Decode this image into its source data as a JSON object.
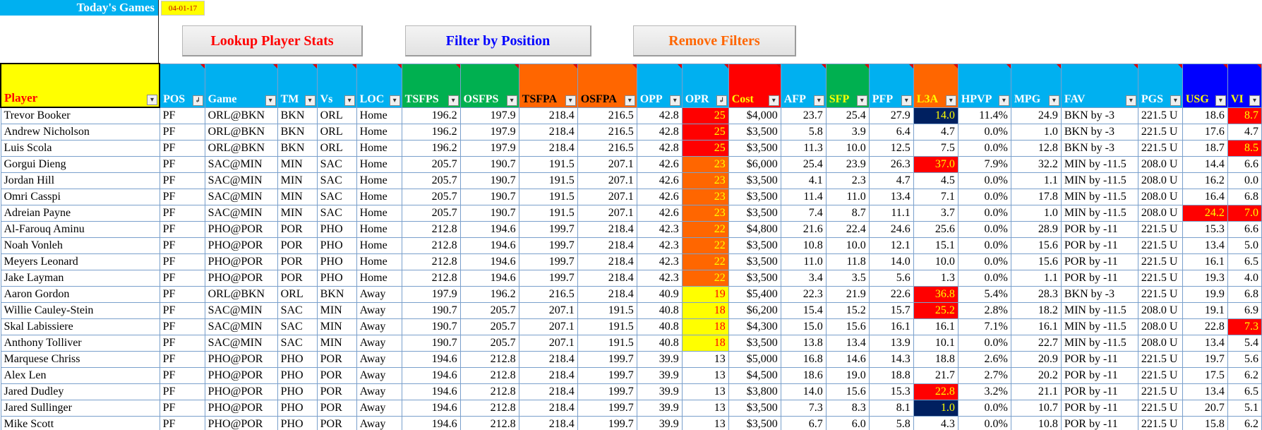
{
  "header": {
    "title": "Today's Games",
    "date": "04-01-17"
  },
  "buttons": {
    "lookup": "Lookup Player Stats",
    "filter": "Filter by Position",
    "remove": "Remove Filters"
  },
  "columns": [
    {
      "key": "player",
      "label": "Player",
      "bg": "#FFFF00",
      "w": 225
    },
    {
      "key": "pos",
      "label": "POS",
      "bg": "#00B0F0",
      "w": 64,
      "sorted": true
    },
    {
      "key": "game",
      "label": "Game",
      "bg": "#00B0F0",
      "w": 103
    },
    {
      "key": "tm",
      "label": "TM",
      "bg": "#00B0F0",
      "w": 56
    },
    {
      "key": "vs",
      "label": "Vs",
      "bg": "#00B0F0",
      "w": 56
    },
    {
      "key": "loc",
      "label": "LOC",
      "bg": "#00B0F0",
      "w": 64
    },
    {
      "key": "tsfps",
      "label": "TSFPS",
      "bg": "#00B050",
      "w": 83
    },
    {
      "key": "osfps",
      "label": "OSFPS",
      "bg": "#00B050",
      "w": 83
    },
    {
      "key": "tsfpa",
      "label": "TSFPA",
      "bg": "#FF6600",
      "w": 83,
      "color": "#000"
    },
    {
      "key": "osfpa",
      "label": "OSFPA",
      "bg": "#FF6600",
      "w": 84,
      "color": "#000"
    },
    {
      "key": "opp",
      "label": "OPP",
      "bg": "#00B0F0",
      "w": 64
    },
    {
      "key": "opr",
      "label": "OPR",
      "bg": "#00B0F0",
      "w": 66,
      "sorted": true
    },
    {
      "key": "cost",
      "label": "Cost",
      "bg": "#FF0000",
      "w": 74,
      "color": "#FFFF00"
    },
    {
      "key": "afp",
      "label": "AFP",
      "bg": "#00B0F0",
      "w": 64
    },
    {
      "key": "sfp",
      "label": "SFP",
      "bg": "#00B050",
      "w": 61,
      "color": "#FFFF00"
    },
    {
      "key": "pfp",
      "label": "PFP",
      "bg": "#00B0F0",
      "w": 63
    },
    {
      "key": "l3a",
      "label": "L3A",
      "bg": "#FF6600",
      "w": 63,
      "color": "#FFFF00"
    },
    {
      "key": "hpvp",
      "label": "HPVP",
      "bg": "#00B0F0",
      "w": 75
    },
    {
      "key": "mpg",
      "label": "MPG",
      "bg": "#00B0F0",
      "w": 71
    },
    {
      "key": "fav",
      "label": "FAV",
      "bg": "#00B0F0",
      "w": 109
    },
    {
      "key": "pgs",
      "label": "PGS",
      "bg": "#00B0F0",
      "w": 63
    },
    {
      "key": "usg",
      "label": "USG",
      "bg": "#0000FF",
      "w": 64,
      "color": "#FFFF00"
    },
    {
      "key": "vi",
      "label": "VI",
      "bg": "#0000FF",
      "w": 48,
      "color": "#FFFF00"
    }
  ],
  "rows": [
    [
      "Trevor Booker",
      "PF",
      "ORL@BKN",
      "BKN",
      "ORL",
      "Home",
      "196.2",
      "197.9",
      "218.4",
      "216.5",
      "42.8",
      "25",
      "$4,000",
      "23.7",
      "25.4",
      "27.9",
      "14.0",
      "11.4%",
      "24.9",
      "BKN by -3",
      "221.5 U",
      "18.6",
      "8.7"
    ],
    [
      "Andrew Nicholson",
      "PF",
      "ORL@BKN",
      "BKN",
      "ORL",
      "Home",
      "196.2",
      "197.9",
      "218.4",
      "216.5",
      "42.8",
      "25",
      "$3,500",
      "5.8",
      "3.9",
      "6.4",
      "4.7",
      "0.0%",
      "1.0",
      "BKN by -3",
      "221.5 U",
      "17.6",
      "4.7"
    ],
    [
      "Luis Scola",
      "PF",
      "ORL@BKN",
      "BKN",
      "ORL",
      "Home",
      "196.2",
      "197.9",
      "218.4",
      "216.5",
      "42.8",
      "25",
      "$3,500",
      "11.3",
      "10.0",
      "12.5",
      "7.5",
      "0.0%",
      "12.8",
      "BKN by -3",
      "221.5 U",
      "18.7",
      "8.5"
    ],
    [
      "Gorgui Dieng",
      "PF",
      "SAC@MIN",
      "MIN",
      "SAC",
      "Home",
      "205.7",
      "190.7",
      "191.5",
      "207.1",
      "42.6",
      "23",
      "$6,000",
      "25.4",
      "23.9",
      "26.3",
      "37.0",
      "7.9%",
      "32.2",
      "MIN by -11.5",
      "208.0 U",
      "14.4",
      "6.6"
    ],
    [
      "Jordan Hill",
      "PF",
      "SAC@MIN",
      "MIN",
      "SAC",
      "Home",
      "205.7",
      "190.7",
      "191.5",
      "207.1",
      "42.6",
      "23",
      "$3,500",
      "4.1",
      "2.3",
      "4.7",
      "4.5",
      "0.0%",
      "1.1",
      "MIN by -11.5",
      "208.0 U",
      "16.2",
      "0.0"
    ],
    [
      "Omri Casspi",
      "PF",
      "SAC@MIN",
      "MIN",
      "SAC",
      "Home",
      "205.7",
      "190.7",
      "191.5",
      "207.1",
      "42.6",
      "23",
      "$3,500",
      "11.4",
      "11.0",
      "13.4",
      "7.1",
      "0.0%",
      "17.8",
      "MIN by -11.5",
      "208.0 U",
      "16.4",
      "6.8"
    ],
    [
      "Adreian Payne",
      "PF",
      "SAC@MIN",
      "MIN",
      "SAC",
      "Home",
      "205.7",
      "190.7",
      "191.5",
      "207.1",
      "42.6",
      "23",
      "$3,500",
      "7.4",
      "8.7",
      "11.1",
      "3.7",
      "0.0%",
      "1.0",
      "MIN by -11.5",
      "208.0 U",
      "24.2",
      "7.0"
    ],
    [
      "Al-Farouq Aminu",
      "PF",
      "PHO@POR",
      "POR",
      "PHO",
      "Home",
      "212.8",
      "194.6",
      "199.7",
      "218.4",
      "42.3",
      "22",
      "$4,800",
      "21.6",
      "22.4",
      "24.6",
      "25.6",
      "0.0%",
      "28.9",
      "POR by -11",
      "221.5 U",
      "15.3",
      "6.6"
    ],
    [
      "Noah Vonleh",
      "PF",
      "PHO@POR",
      "POR",
      "PHO",
      "Home",
      "212.8",
      "194.6",
      "199.7",
      "218.4",
      "42.3",
      "22",
      "$3,500",
      "10.8",
      "10.0",
      "12.1",
      "15.1",
      "0.0%",
      "15.6",
      "POR by -11",
      "221.5 U",
      "13.4",
      "5.0"
    ],
    [
      "Meyers Leonard",
      "PF",
      "PHO@POR",
      "POR",
      "PHO",
      "Home",
      "212.8",
      "194.6",
      "199.7",
      "218.4",
      "42.3",
      "22",
      "$3,500",
      "11.0",
      "11.8",
      "14.0",
      "10.0",
      "0.0%",
      "15.6",
      "POR by -11",
      "221.5 U",
      "16.1",
      "6.5"
    ],
    [
      "Jake Layman",
      "PF",
      "PHO@POR",
      "POR",
      "PHO",
      "Home",
      "212.8",
      "194.6",
      "199.7",
      "218.4",
      "42.3",
      "22",
      "$3,500",
      "3.4",
      "3.5",
      "5.6",
      "1.3",
      "0.0%",
      "1.1",
      "POR by -11",
      "221.5 U",
      "19.3",
      "4.0"
    ],
    [
      "Aaron Gordon",
      "PF",
      "ORL@BKN",
      "ORL",
      "BKN",
      "Away",
      "197.9",
      "196.2",
      "216.5",
      "218.4",
      "40.9",
      "19",
      "$5,400",
      "22.3",
      "21.9",
      "22.6",
      "36.8",
      "5.4%",
      "28.3",
      "BKN by -3",
      "221.5 U",
      "19.9",
      "6.8"
    ],
    [
      "Willie Cauley-Stein",
      "PF",
      "SAC@MIN",
      "SAC",
      "MIN",
      "Away",
      "190.7",
      "205.7",
      "207.1",
      "191.5",
      "40.8",
      "18",
      "$6,200",
      "15.4",
      "15.2",
      "15.7",
      "25.2",
      "2.8%",
      "18.2",
      "MIN by -11.5",
      "208.0 U",
      "19.1",
      "6.9"
    ],
    [
      "Skal Labissiere",
      "PF",
      "SAC@MIN",
      "SAC",
      "MIN",
      "Away",
      "190.7",
      "205.7",
      "207.1",
      "191.5",
      "40.8",
      "18",
      "$4,300",
      "15.0",
      "15.6",
      "16.1",
      "16.1",
      "7.1%",
      "16.1",
      "MIN by -11.5",
      "208.0 U",
      "22.8",
      "7.3"
    ],
    [
      "Anthony Tolliver",
      "PF",
      "SAC@MIN",
      "SAC",
      "MIN",
      "Away",
      "190.7",
      "205.7",
      "207.1",
      "191.5",
      "40.8",
      "18",
      "$3,500",
      "13.8",
      "13.4",
      "13.9",
      "10.1",
      "0.0%",
      "22.7",
      "MIN by -11.5",
      "208.0 U",
      "13.4",
      "5.4"
    ],
    [
      "Marquese Chriss",
      "PF",
      "PHO@POR",
      "PHO",
      "POR",
      "Away",
      "194.6",
      "212.8",
      "218.4",
      "199.7",
      "39.9",
      "13",
      "$5,000",
      "16.8",
      "14.6",
      "14.3",
      "18.8",
      "2.6%",
      "20.9",
      "POR by -11",
      "221.5 U",
      "19.7",
      "5.6"
    ],
    [
      "Alex Len",
      "PF",
      "PHO@POR",
      "PHO",
      "POR",
      "Away",
      "194.6",
      "212.8",
      "218.4",
      "199.7",
      "39.9",
      "13",
      "$4,500",
      "18.6",
      "19.0",
      "18.8",
      "21.7",
      "2.7%",
      "20.2",
      "POR by -11",
      "221.5 U",
      "17.5",
      "6.2"
    ],
    [
      "Jared Dudley",
      "PF",
      "PHO@POR",
      "PHO",
      "POR",
      "Away",
      "194.6",
      "212.8",
      "218.4",
      "199.7",
      "39.9",
      "13",
      "$3,800",
      "14.0",
      "15.6",
      "15.3",
      "22.8",
      "3.2%",
      "21.1",
      "POR by -11",
      "221.5 U",
      "13.4",
      "6.5"
    ],
    [
      "Jared Sullinger",
      "PF",
      "PHO@POR",
      "PHO",
      "POR",
      "Away",
      "194.6",
      "212.8",
      "218.4",
      "199.7",
      "39.9",
      "13",
      "$3,500",
      "7.3",
      "8.3",
      "8.1",
      "1.0",
      "0.0%",
      "10.7",
      "POR by -11",
      "221.5 U",
      "20.7",
      "5.1"
    ],
    [
      "Mike Scott",
      "PF",
      "PHO@POR",
      "PHO",
      "POR",
      "Away",
      "194.6",
      "212.8",
      "218.4",
      "199.7",
      "39.9",
      "13",
      "$3,500",
      "6.7",
      "6.0",
      "5.8",
      "4.3",
      "0.0%",
      "10.8",
      "POR by -11",
      "221.5 U",
      "15.8",
      "6.2"
    ]
  ],
  "highlights": {
    "l3a": {
      "0": "navy",
      "3": "red",
      "11": "red",
      "12": "red",
      "17": "red",
      "18": "navy"
    },
    "usg": {
      "6": "red"
    },
    "vi": {
      "0": "red",
      "2": "red",
      "6": "red",
      "13": "red"
    }
  },
  "opr_tiers": {
    "25": "r-a",
    "23": "r-b",
    "22": "r-b",
    "19": "r-c",
    "18": "r-c"
  },
  "icons": {
    "dropdown": "dropdown-arrow-icon",
    "sorted": "sort-filter-icon"
  }
}
